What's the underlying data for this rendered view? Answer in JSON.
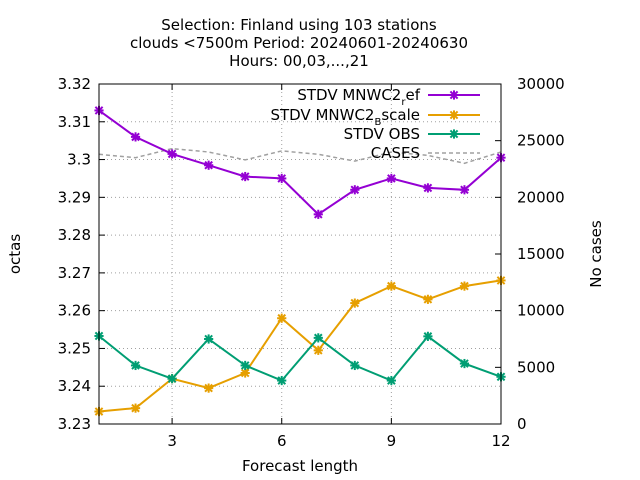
{
  "chart_data": {
    "type": "line",
    "title_lines": [
      "Selection: Finland using   103 stations",
      "clouds <7500m   Period: 20240601-20240630",
      "Hours: 00,03,...,21"
    ],
    "xlabel": "Forecast length",
    "ylabel": "octas",
    "y2label": "No cases",
    "xlim": [
      1,
      12
    ],
    "ylim": [
      3.23,
      3.32
    ],
    "y2lim": [
      0,
      30000
    ],
    "xticks": [
      "3",
      "6",
      "9",
      "12"
    ],
    "yticks": [
      "3.23",
      "3.24",
      "3.25",
      "3.26",
      "3.27",
      "3.28",
      "3.29",
      "3.3",
      "3.31",
      "3.32"
    ],
    "y2ticks": [
      "0",
      "5000",
      "10000",
      "15000",
      "20000",
      "25000",
      "30000"
    ],
    "grid": true,
    "legend_position": "top-right",
    "x": [
      1,
      2,
      3,
      4,
      5,
      6,
      7,
      8,
      9,
      10,
      11,
      12
    ],
    "series": [
      {
        "name_main": "STDV MNWC2",
        "name_sub": "r",
        "name_rest": "ef",
        "color": "#9400d3",
        "axis": "y1",
        "marker": true,
        "values": [
          3.313,
          3.306,
          3.3015,
          3.2985,
          3.2955,
          3.295,
          3.2855,
          3.292,
          3.295,
          3.2925,
          3.292,
          3.3005
        ]
      },
      {
        "name_main": "STDV MNWC2",
        "name_sub": "B",
        "name_rest": "scale",
        "color": "#e69f00",
        "axis": "y1",
        "marker": true,
        "values": [
          3.2333,
          3.2342,
          3.242,
          3.2395,
          3.2435,
          3.258,
          3.2495,
          3.262,
          3.2665,
          3.263,
          3.2665,
          3.268
        ]
      },
      {
        "name_main": "STDV OBS",
        "color": "#009e73",
        "axis": "y1",
        "marker": true,
        "values": [
          3.2533,
          3.2455,
          3.242,
          3.2525,
          3.2455,
          3.2415,
          3.2528,
          3.2455,
          3.2415,
          3.2532,
          3.246,
          3.2425
        ]
      },
      {
        "name_main": "CASES",
        "color": "#a0a0a0",
        "axis": "y2",
        "marker": false,
        "dashed": true,
        "values": [
          23800,
          23500,
          24300,
          24000,
          23300,
          24100,
          23800,
          23200,
          24000,
          23700,
          23000,
          24000
        ]
      }
    ]
  }
}
